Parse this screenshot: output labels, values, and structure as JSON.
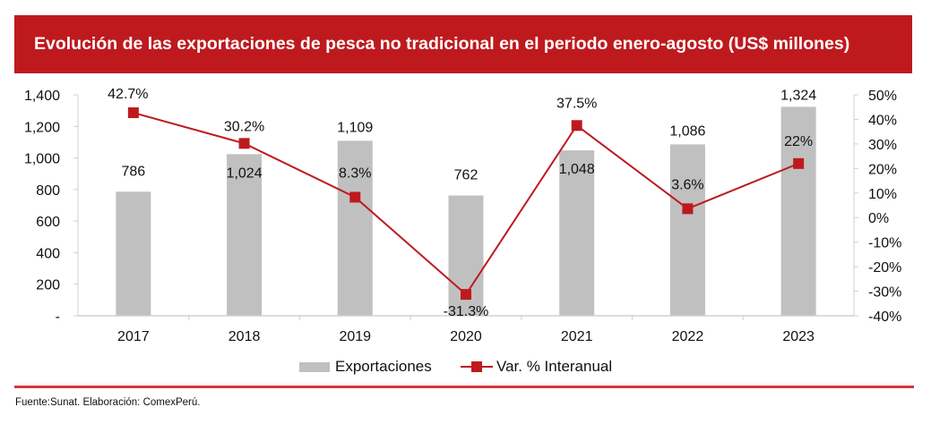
{
  "header": {
    "title": "Evolución de las exportaciones de pesca no tradicional en el periodo enero-agosto (US$ millones)",
    "background_color": "#be1a1e"
  },
  "chart_data": {
    "type": "bar+line",
    "title": "Evolución de las exportaciones de pesca no tradicional en el periodo enero-agosto (US$ millones)",
    "categories": [
      "2017",
      "2018",
      "2019",
      "2020",
      "2021",
      "2022",
      "2023"
    ],
    "series": [
      {
        "name": "Exportaciones",
        "type": "bar",
        "axis": "left",
        "color": "#c0c0c0",
        "values": [
          786,
          1024,
          1109,
          762,
          1048,
          1086,
          1324
        ],
        "labels": [
          "786",
          "1,024",
          "1,109",
          "762",
          "1,048",
          "1,086",
          "1,324"
        ]
      },
      {
        "name": "Var. % Interanual",
        "type": "line",
        "axis": "right",
        "color": "#be1a1e",
        "marker": "square",
        "values": [
          42.7,
          30.2,
          8.3,
          -31.3,
          37.5,
          3.6,
          22
        ],
        "labels": [
          "42.7%",
          "30.2%",
          "8.3%",
          "-31.3%",
          "37.5%",
          "3.6%",
          "22%"
        ]
      }
    ],
    "left_axis": {
      "ylim": [
        0,
        1400
      ],
      "ticks": [
        0,
        200,
        400,
        600,
        800,
        1000,
        1200,
        1400
      ],
      "tick_labels": [
        "-",
        "200",
        "400",
        "600",
        "800",
        "1,000",
        "1,200",
        "1,400"
      ]
    },
    "right_axis": {
      "ylim": [
        -40,
        50
      ],
      "ticks": [
        -40,
        -30,
        -20,
        -10,
        0,
        10,
        20,
        30,
        40,
        50
      ],
      "tick_labels": [
        "-40%",
        "-30%",
        "-20%",
        "-10%",
        "0%",
        "10%",
        "20%",
        "30%",
        "40%",
        "50%"
      ]
    },
    "xlabel": "",
    "ylabel": "",
    "grid": false,
    "legend_position": "bottom"
  },
  "legend": {
    "bar_label": "Exportaciones",
    "line_label": "Var. % Interanual"
  },
  "source": "Fuente:Sunat. Elaboración: ComexPerú."
}
